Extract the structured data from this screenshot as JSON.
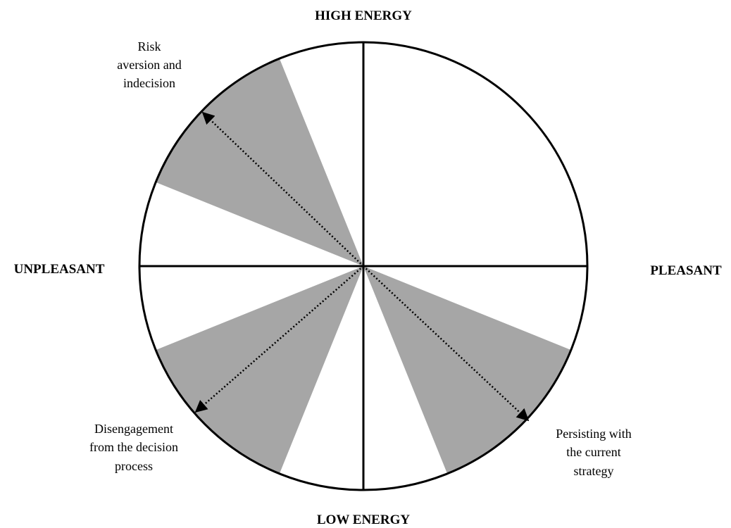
{
  "axes": {
    "top": "HIGH ENERGY",
    "bottom": "LOW ENERGY",
    "left": "UNPLEASANT",
    "right": "PLEASANT"
  },
  "annotations": [
    {
      "lines": [
        "Risk",
        "aversion and",
        "indecision"
      ]
    },
    {
      "lines": [
        "Disengagement",
        "from the decision",
        "process"
      ]
    },
    {
      "lines": [
        "Persisting with",
        "the current",
        "strategy"
      ]
    }
  ]
}
